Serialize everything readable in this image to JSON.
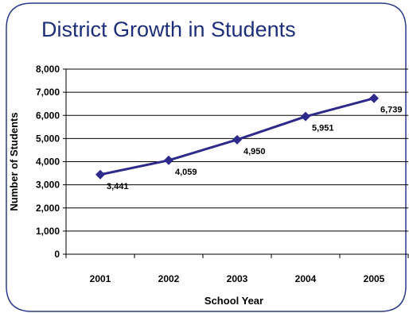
{
  "chart_data": {
    "type": "line",
    "title": "District Growth in Students",
    "xlabel": "School Year",
    "ylabel": "Number of Students",
    "categories": [
      "2001",
      "2002",
      "2003",
      "2004",
      "2005"
    ],
    "series": [
      {
        "values": [
          3441,
          4059,
          4950,
          5951,
          6739
        ],
        "data_labels": [
          "3,441",
          "4,059",
          "4,950",
          "5,951",
          "6,739"
        ]
      }
    ],
    "ylim": [
      0,
      8000
    ],
    "y_ticks": [
      0,
      1000,
      2000,
      3000,
      4000,
      5000,
      6000,
      7000,
      8000
    ],
    "y_tick_labels": [
      "0",
      "1,000",
      "2,000",
      "3,000",
      "4,000",
      "5,000",
      "6,000",
      "7,000",
      "8,000"
    ],
    "grid": true,
    "legend": "none",
    "colors": {
      "line": "#2e2a8c",
      "marker": "#2e2a8c",
      "title": "#1f2e7a",
      "frame": "#2b3a8a",
      "grid": "#000000"
    }
  }
}
